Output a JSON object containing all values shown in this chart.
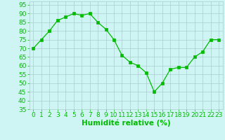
{
  "x": [
    0,
    1,
    2,
    3,
    4,
    5,
    6,
    7,
    8,
    9,
    10,
    11,
    12,
    13,
    14,
    15,
    16,
    17,
    18,
    19,
    20,
    21,
    22,
    23
  ],
  "y": [
    70,
    75,
    80,
    86,
    88,
    90,
    89,
    90,
    85,
    81,
    75,
    66,
    62,
    60,
    56,
    45,
    50,
    58,
    59,
    59,
    65,
    68,
    75,
    75
  ],
  "line_color": "#00bb00",
  "marker": "s",
  "marker_size": 2.5,
  "bg_color": "#cff4f4",
  "grid_color": "#aacccc",
  "xlabel": "Humidité relative (%)",
  "xlabel_color": "#00bb00",
  "xlabel_fontsize": 7.5,
  "tick_color": "#00bb00",
  "tick_fontsize": 6.5,
  "ylim": [
    35,
    97
  ],
  "xlim": [
    -0.5,
    23.5
  ],
  "yticks": [
    35,
    40,
    45,
    50,
    55,
    60,
    65,
    70,
    75,
    80,
    85,
    90,
    95
  ],
  "xticks": [
    0,
    1,
    2,
    3,
    4,
    5,
    6,
    7,
    8,
    9,
    10,
    11,
    12,
    13,
    14,
    15,
    16,
    17,
    18,
    19,
    20,
    21,
    22,
    23
  ]
}
